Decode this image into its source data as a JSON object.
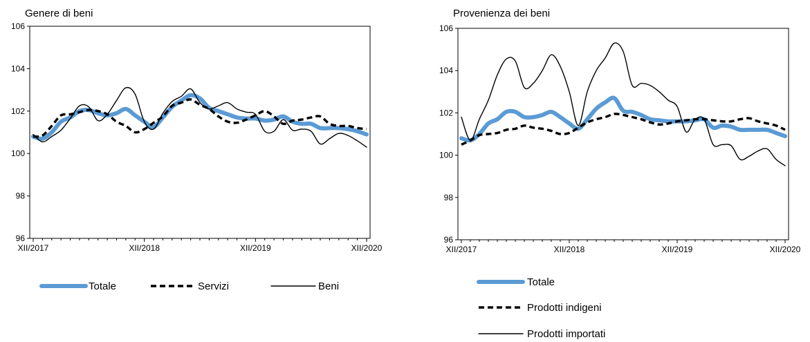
{
  "chart_data": [
    {
      "type": "line",
      "title": "Genere di beni",
      "ylim": [
        96,
        106
      ],
      "yticks": [
        96,
        98,
        100,
        102,
        104,
        106
      ],
      "x_tick_labels": [
        "XII/2017",
        "XII/2018",
        "XII/2019",
        "XII/2020"
      ],
      "x_tick_months": [
        0,
        12,
        24,
        36
      ],
      "grid": false,
      "legend_position": "bottom",
      "series": [
        {
          "name": "Totale",
          "color": "#5b9bd5",
          "style": "thick",
          "values": [
            100.8,
            100.7,
            101.0,
            101.5,
            101.7,
            102.0,
            102.05,
            101.9,
            101.8,
            101.9,
            102.1,
            101.8,
            101.5,
            101.25,
            101.7,
            102.2,
            102.5,
            102.75,
            102.6,
            102.15,
            102.0,
            101.85,
            101.7,
            101.65,
            101.65,
            101.55,
            101.6,
            101.75,
            101.5,
            101.4,
            101.4,
            101.2,
            101.2,
            101.2,
            101.15,
            101.05,
            100.9
          ]
        },
        {
          "name": "Servizi",
          "color": "#000000",
          "style": "dashed",
          "values": [
            100.8,
            100.85,
            101.3,
            101.8,
            101.85,
            101.95,
            102.05,
            102.0,
            101.85,
            101.5,
            101.3,
            101.0,
            101.15,
            101.45,
            101.75,
            102.25,
            102.4,
            102.55,
            102.3,
            102.1,
            101.75,
            101.5,
            101.45,
            101.6,
            101.8,
            102.0,
            101.75,
            101.4,
            101.55,
            101.6,
            101.7,
            101.75,
            101.4,
            101.3,
            101.3,
            101.2,
            101.15
          ]
        },
        {
          "name": "Beni",
          "color": "#000000",
          "style": "thin",
          "values": [
            100.9,
            100.55,
            100.8,
            101.1,
            101.65,
            102.25,
            102.2,
            101.55,
            101.85,
            102.5,
            103.1,
            102.8,
            101.5,
            101.15,
            101.9,
            102.45,
            102.7,
            103.05,
            102.4,
            102.1,
            102.25,
            102.4,
            102.1,
            101.95,
            101.85,
            101.05,
            101.05,
            101.6,
            101.1,
            101.15,
            101.05,
            100.45,
            100.7,
            100.95,
            100.85,
            100.6,
            100.3
          ]
        }
      ]
    },
    {
      "type": "line",
      "title": "Provenienza dei beni",
      "ylim": [
        96,
        106
      ],
      "yticks": [
        96,
        98,
        100,
        102,
        104,
        106
      ],
      "x_tick_labels": [
        "XII/2017",
        "XII/2018",
        "XII/2019",
        "XII/2020"
      ],
      "x_tick_months": [
        0,
        12,
        24,
        36
      ],
      "grid": false,
      "legend_position": "bottom",
      "series": [
        {
          "name": "Totale",
          "color": "#5b9bd5",
          "style": "thick",
          "values": [
            100.8,
            100.7,
            101.0,
            101.5,
            101.7,
            102.05,
            102.05,
            101.8,
            101.8,
            101.9,
            102.05,
            101.8,
            101.5,
            101.25,
            101.7,
            102.2,
            102.5,
            102.7,
            102.1,
            102.05,
            101.9,
            101.7,
            101.65,
            101.6,
            101.6,
            101.6,
            101.65,
            101.7,
            101.3,
            101.4,
            101.35,
            101.2,
            101.2,
            101.2,
            101.2,
            101.05,
            100.9
          ]
        },
        {
          "name": "Prodotti indigeni",
          "color": "#000000",
          "style": "dashed",
          "values": [
            100.5,
            100.7,
            100.95,
            101.0,
            101.05,
            101.2,
            101.25,
            101.4,
            101.3,
            101.25,
            101.15,
            101.0,
            101.05,
            101.3,
            101.55,
            101.7,
            101.8,
            101.95,
            101.9,
            101.8,
            101.7,
            101.55,
            101.45,
            101.5,
            101.6,
            101.65,
            101.7,
            101.7,
            101.65,
            101.6,
            101.6,
            101.7,
            101.75,
            101.6,
            101.5,
            101.4,
            101.2
          ]
        },
        {
          "name": "Prodotti importati",
          "color": "#000000",
          "style": "thin",
          "values": [
            101.8,
            100.7,
            101.7,
            102.6,
            103.8,
            104.55,
            104.45,
            103.2,
            103.4,
            104.0,
            104.75,
            104.2,
            103.0,
            101.4,
            103.0,
            104.0,
            104.6,
            105.3,
            104.9,
            103.3,
            103.4,
            103.3,
            103.0,
            102.6,
            102.3,
            101.1,
            101.7,
            101.7,
            100.5,
            100.5,
            100.45,
            99.8,
            99.95,
            100.2,
            100.3,
            99.8,
            99.5
          ]
        }
      ]
    }
  ]
}
